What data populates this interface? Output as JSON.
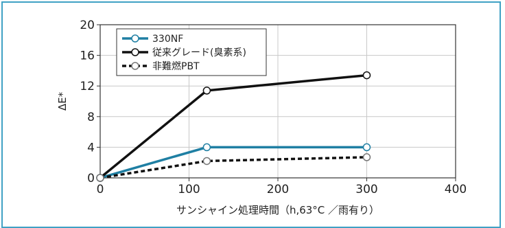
{
  "chart_data": {
    "type": "line",
    "xlabel": "サンシャイン処理時間（h,63°C ／雨有り）",
    "ylabel": "ΔE*",
    "xlim": [
      0,
      400
    ],
    "ylim": [
      0,
      20
    ],
    "xticks": [
      0,
      100,
      200,
      300,
      400
    ],
    "yticks": [
      0,
      4,
      8,
      12,
      16,
      20
    ],
    "grid": true,
    "legend_position": "top-left",
    "series": [
      {
        "name": "330NF",
        "x": [
          0,
          120,
          300
        ],
        "y": [
          0,
          4,
          4
        ],
        "color": "#1f7fa3",
        "style": "solid",
        "marker_fill": "#ffffff"
      },
      {
        "name": "従来グレード(臭素系)",
        "x": [
          0,
          120,
          300
        ],
        "y": [
          0,
          11.4,
          13.4
        ],
        "color": "#111111",
        "style": "solid",
        "marker_fill": "#ffffff"
      },
      {
        "name": "非難燃PBT",
        "x": [
          0,
          120,
          300
        ],
        "y": [
          0,
          2.2,
          2.7
        ],
        "color": "#111111",
        "style": "dotted",
        "marker_fill": "#ffffff"
      }
    ]
  }
}
